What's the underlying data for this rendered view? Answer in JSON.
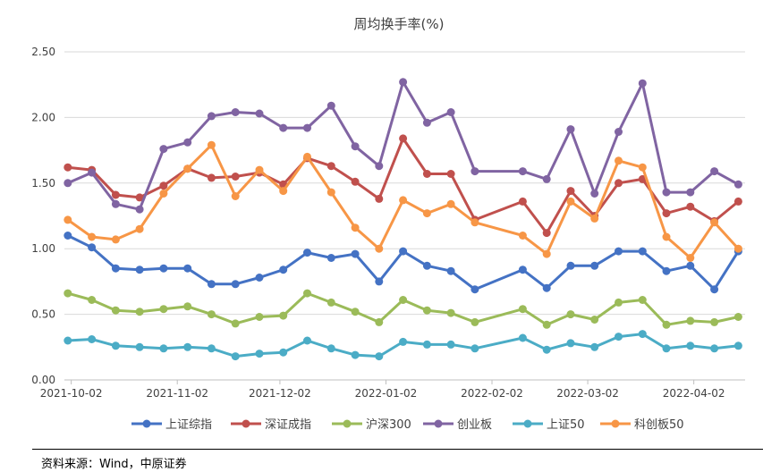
{
  "chart_data": {
    "type": "line",
    "title": "周均换手率(%)",
    "xlabel": "",
    "ylabel": "",
    "ylim": [
      0,
      2.5
    ],
    "yticks": [
      "0.00",
      "0.50",
      "1.00",
      "1.50",
      "2.00",
      "2.50"
    ],
    "xticks": [
      "2021-10-02",
      "2021-11-02",
      "2021-12-02",
      "2022-01-02",
      "2022-02-02",
      "2022-03-02",
      "2022-04-02"
    ],
    "grid": "horizontal",
    "legend_position": "bottom",
    "x": [
      "2021-10-01",
      "2021-10-08",
      "2021-10-15",
      "2021-10-22",
      "2021-10-29",
      "2021-11-05",
      "2021-11-12",
      "2021-11-19",
      "2021-11-26",
      "2021-12-03",
      "2021-12-10",
      "2021-12-17",
      "2021-12-24",
      "2021-12-31",
      "2022-01-07",
      "2022-01-14",
      "2022-01-21",
      "2022-01-28",
      "2022-02-11",
      "2022-02-18",
      "2022-02-25",
      "2022-03-04",
      "2022-03-11",
      "2022-03-18",
      "2022-03-25",
      "2022-04-01",
      "2022-04-08",
      "2022-04-15"
    ],
    "series": [
      {
        "name": "上证综指",
        "color": "#4472C4",
        "values": [
          1.1,
          1.01,
          0.85,
          0.84,
          0.85,
          0.85,
          0.73,
          0.73,
          0.78,
          0.84,
          0.97,
          0.93,
          0.96,
          0.75,
          0.98,
          0.87,
          0.83,
          0.69,
          0.84,
          0.7,
          0.87,
          0.87,
          0.98,
          0.98,
          0.83,
          0.87,
          0.69,
          0.98
        ]
      },
      {
        "name": "深证成指",
        "color": "#C0504D",
        "values": [
          1.62,
          1.6,
          1.41,
          1.39,
          1.48,
          1.61,
          1.54,
          1.55,
          1.58,
          1.49,
          1.69,
          1.63,
          1.51,
          1.38,
          1.84,
          1.57,
          1.57,
          1.22,
          1.36,
          1.12,
          1.44,
          1.25,
          1.5,
          1.53,
          1.27,
          1.32,
          1.21,
          1.36
        ]
      },
      {
        "name": "沪深300",
        "color": "#9BBB59",
        "values": [
          0.66,
          0.61,
          0.53,
          0.52,
          0.54,
          0.56,
          0.5,
          0.43,
          0.48,
          0.49,
          0.66,
          0.59,
          0.52,
          0.44,
          0.61,
          0.53,
          0.51,
          0.44,
          0.54,
          0.42,
          0.5,
          0.46,
          0.59,
          0.61,
          0.42,
          0.45,
          0.44,
          0.48
        ]
      },
      {
        "name": "创业板",
        "color": "#8064A2",
        "values": [
          1.5,
          1.58,
          1.34,
          1.3,
          1.76,
          1.81,
          2.01,
          2.04,
          2.03,
          1.92,
          1.92,
          2.09,
          1.78,
          1.63,
          2.27,
          1.96,
          2.04,
          1.59,
          1.59,
          1.53,
          1.91,
          1.42,
          1.89,
          2.26,
          1.43,
          1.43,
          1.59,
          1.49
        ]
      },
      {
        "name": "上证50",
        "color": "#4BACC6",
        "values": [
          0.3,
          0.31,
          0.26,
          0.25,
          0.24,
          0.25,
          0.24,
          0.18,
          0.2,
          0.21,
          0.3,
          0.24,
          0.19,
          0.18,
          0.29,
          0.27,
          0.27,
          0.24,
          0.32,
          0.23,
          0.28,
          0.25,
          0.33,
          0.35,
          0.24,
          0.26,
          0.24,
          0.26
        ]
      },
      {
        "name": "科创板50",
        "color": "#F79646",
        "values": [
          1.22,
          1.09,
          1.07,
          1.15,
          1.42,
          1.61,
          1.79,
          1.4,
          1.6,
          1.44,
          1.7,
          1.43,
          1.16,
          1.0,
          1.37,
          1.27,
          1.34,
          1.2,
          1.1,
          0.96,
          1.36,
          1.23,
          1.67,
          1.62,
          1.09,
          0.93,
          1.2,
          1.0
        ]
      }
    ]
  },
  "source": "资料来源：Wind，中原证券"
}
